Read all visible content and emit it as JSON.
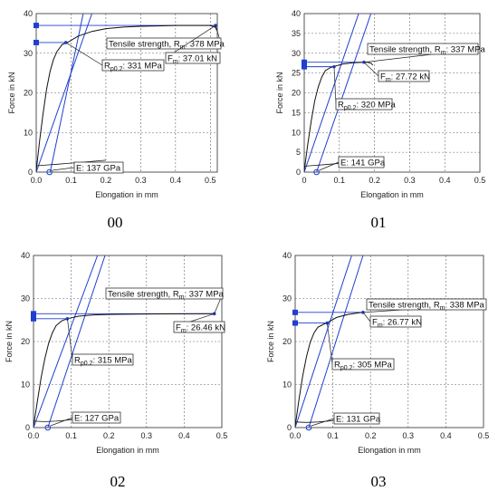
{
  "colors": {
    "curve": "#111111",
    "guide": "#1f3fd0",
    "grid": "#666666",
    "frame": "#444444"
  },
  "chart_data": [
    {
      "type": "line",
      "caption": "00",
      "xlabel": "Elongation in mm",
      "ylabel": "Force in kN",
      "xlim": [
        0,
        0.52
      ],
      "ylim": [
        0,
        40
      ],
      "xticks": [
        "0.0",
        "0.1",
        "0.2",
        "0.3",
        "0.4",
        "0.5"
      ],
      "yticks": [
        "0",
        "10",
        "20",
        "30",
        "40"
      ],
      "curve": [
        [
          0.0,
          0.3
        ],
        [
          0.01,
          8
        ],
        [
          0.02,
          15
        ],
        [
          0.03,
          21
        ],
        [
          0.04,
          25.5
        ],
        [
          0.05,
          28.5
        ],
        [
          0.06,
          30.5
        ],
        [
          0.075,
          32.2
        ],
        [
          0.09,
          32.7
        ],
        [
          0.12,
          34.3
        ],
        [
          0.16,
          35.5
        ],
        [
          0.2,
          36.2
        ],
        [
          0.25,
          36.6
        ],
        [
          0.3,
          36.8
        ],
        [
          0.35,
          36.9
        ],
        [
          0.4,
          37.0
        ],
        [
          0.45,
          37.0
        ],
        [
          0.5,
          37.01
        ],
        [
          0.515,
          36.5
        ],
        [
          0.52,
          35.5
        ]
      ],
      "unload": [
        [
          0.0,
          1.6
        ],
        [
          0.03,
          1.8
        ],
        [
          0.06,
          2.0
        ],
        [
          0.09,
          2.2
        ],
        [
          0.13,
          2.5
        ],
        [
          0.2,
          3.0
        ]
      ],
      "modulus_line": [
        [
          0.0,
          0.0
        ],
        [
          0.16,
          40
        ]
      ],
      "offset_line": [
        [
          0.04,
          0.0
        ],
        [
          0.135,
          40
        ]
      ],
      "rm_point": [
        0.515,
        37.01
      ],
      "rp_point": [
        0.085,
        32.7
      ],
      "offset_origin": [
        0.038,
        0.0
      ],
      "tensile_strength": "Tensile strength, Rm: 378 MPa",
      "fm": "Fm: 37.01 kN",
      "rp02": "Rp0.2: 331 MPa",
      "e_modulus": "E: 137 GPa"
    },
    {
      "type": "line",
      "caption": "01",
      "xlabel": "Elongation in mm",
      "ylabel": "Force in kN",
      "xlim": [
        0,
        0.5
      ],
      "ylim": [
        0,
        40
      ],
      "xticks": [
        "0",
        "0.1",
        "0.2",
        "0.3",
        "0.4",
        "0.5"
      ],
      "yticks": [
        "0",
        "5",
        "10",
        "15",
        "20",
        "25",
        "30",
        "35",
        "40"
      ],
      "curve": [
        [
          0.0,
          0.3
        ],
        [
          0.01,
          7
        ],
        [
          0.02,
          13
        ],
        [
          0.03,
          18
        ],
        [
          0.04,
          21.5
        ],
        [
          0.05,
          24
        ],
        [
          0.06,
          25.6
        ],
        [
          0.075,
          26.4
        ],
        [
          0.09,
          26.8
        ],
        [
          0.11,
          27.3
        ],
        [
          0.14,
          27.6
        ],
        [
          0.17,
          27.72
        ],
        [
          0.18,
          27.7
        ],
        [
          0.19,
          27.5
        ],
        [
          0.195,
          27.0
        ]
      ],
      "unload": [
        [
          0.0,
          1.5
        ],
        [
          0.03,
          1.7
        ],
        [
          0.06,
          1.9
        ],
        [
          0.1,
          2.2
        ],
        [
          0.15,
          2.5
        ]
      ],
      "modulus_line": [
        [
          0.0,
          0.0
        ],
        [
          0.155,
          40
        ]
      ],
      "offset_line": [
        [
          0.035,
          0.0
        ],
        [
          0.19,
          40
        ]
      ],
      "rm_point": [
        0.17,
        27.72
      ],
      "rp_point": [
        0.085,
        26.6
      ],
      "offset_origin": [
        0.035,
        0.0
      ],
      "tensile_strength": "Tensile strength, Rm: 337 MPa",
      "fm": "Fm: 27.72 kN",
      "rp02": "Rp0.2: 320 MPa",
      "e_modulus": "E: 141 GPa"
    },
    {
      "type": "line",
      "caption": "02",
      "xlabel": "Elongation in mm",
      "ylabel": "Force in kN",
      "xlim": [
        0,
        0.5
      ],
      "ylim": [
        0,
        40
      ],
      "xticks": [
        "0.0",
        "0.1",
        "0.2",
        "0.3",
        "0.4",
        "0.5"
      ],
      "yticks": [
        "0",
        "10",
        "20",
        "30",
        "40"
      ],
      "curve": [
        [
          0.0,
          0.3
        ],
        [
          0.01,
          6
        ],
        [
          0.02,
          11.5
        ],
        [
          0.03,
          16
        ],
        [
          0.04,
          19.5
        ],
        [
          0.05,
          22
        ],
        [
          0.06,
          23.7
        ],
        [
          0.075,
          24.8
        ],
        [
          0.09,
          25.3
        ],
        [
          0.12,
          25.9
        ],
        [
          0.16,
          26.2
        ],
        [
          0.2,
          26.3
        ],
        [
          0.3,
          26.4
        ],
        [
          0.4,
          26.44
        ],
        [
          0.48,
          26.46
        ]
      ],
      "unload": [
        [
          0.0,
          1.5
        ],
        [
          0.03,
          1.4
        ],
        [
          0.06,
          1.5
        ],
        [
          0.1,
          1.8
        ],
        [
          0.15,
          2.2
        ]
      ],
      "modulus_line": [
        [
          0.0,
          0.0
        ],
        [
          0.17,
          40
        ]
      ],
      "offset_line": [
        [
          0.038,
          0.0
        ],
        [
          0.19,
          40
        ]
      ],
      "rm_point": [
        0.48,
        26.46
      ],
      "rp_point": [
        0.09,
        25.3
      ],
      "offset_origin": [
        0.038,
        0.0
      ],
      "tensile_strength": "Tensile strength, Rm: 337 MPa",
      "fm": "Fm: 26.46 kN",
      "rp02": "Rp0.2: 315 MPa",
      "e_modulus": "E: 127 GPa"
    },
    {
      "type": "line",
      "caption": "03",
      "xlabel": "Elongation in mm",
      "ylabel": "Force in kN",
      "xlim": [
        0,
        0.5
      ],
      "ylim": [
        0,
        40
      ],
      "xticks": [
        "0.0",
        "0.1",
        "0.2",
        "0.3",
        "0.4",
        "0.5"
      ],
      "yticks": [
        "0",
        "10",
        "20",
        "30",
        "40"
      ],
      "curve": [
        [
          0.0,
          0.3
        ],
        [
          0.01,
          6.5
        ],
        [
          0.02,
          12
        ],
        [
          0.03,
          16.5
        ],
        [
          0.04,
          19.8
        ],
        [
          0.05,
          22
        ],
        [
          0.06,
          23.3
        ],
        [
          0.075,
          24.0
        ],
        [
          0.09,
          24.6
        ],
        [
          0.11,
          25.6
        ],
        [
          0.14,
          26.3
        ],
        [
          0.17,
          26.7
        ],
        [
          0.18,
          26.77
        ]
      ],
      "unload": [
        [
          0.0,
          1.3
        ],
        [
          0.03,
          1.2
        ],
        [
          0.06,
          1.3
        ],
        [
          0.1,
          1.6
        ],
        [
          0.15,
          2.0
        ]
      ],
      "modulus_line": [
        [
          0.0,
          0.0
        ],
        [
          0.15,
          40
        ]
      ],
      "offset_line": [
        [
          0.036,
          0.0
        ],
        [
          0.18,
          40
        ]
      ],
      "rm_point": [
        0.18,
        26.77
      ],
      "rp_point": [
        0.085,
        24.3
      ],
      "offset_origin": [
        0.036,
        0.0
      ],
      "tensile_strength": "Tensile strength, Rm: 338 MPa",
      "fm": "Fm: 26.77 kN",
      "rp02": "Rp0.2: 305 MPa",
      "e_modulus": "E: 131 GPa"
    }
  ]
}
